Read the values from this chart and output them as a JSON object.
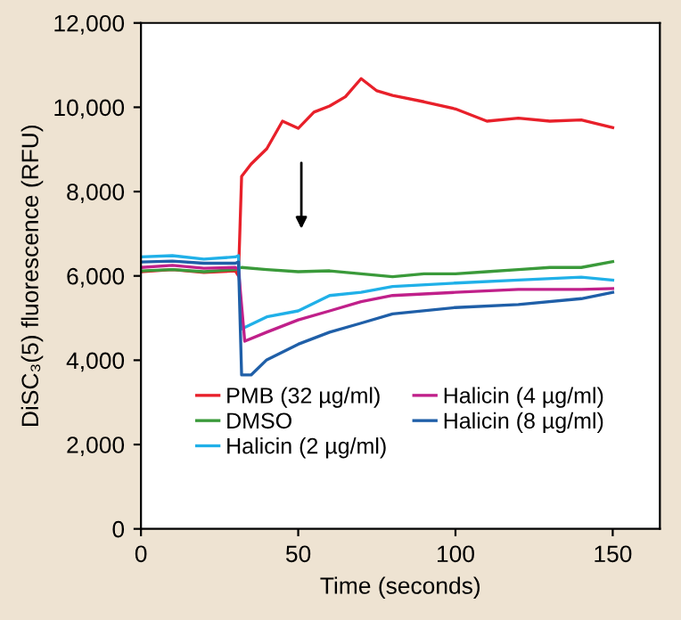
{
  "chart_data": {
    "type": "line",
    "xlabel": "Time (seconds)",
    "ylabel": "DiSC₃(5) fluorescence (RFU)",
    "xlim": [
      0,
      165
    ],
    "xticks": [
      0,
      50,
      100,
      150
    ],
    "ylim": [
      0,
      12000
    ],
    "yticks": [
      {
        "value": 0,
        "label": "0"
      },
      {
        "value": 2000,
        "label": "2,000"
      },
      {
        "value": 4000,
        "label": "4,000"
      },
      {
        "value": 6000,
        "label": "6,000"
      },
      {
        "value": 8000,
        "label": "8,000"
      },
      {
        "value": 10000,
        "label": "10,000"
      },
      {
        "value": 12000,
        "label": "12,000"
      }
    ],
    "grid": false,
    "legend": "bottom",
    "marker": "none",
    "line_style": "solid",
    "series": [
      {
        "name": "PMB (32 µg/ml)",
        "color": "#e8202a",
        "x": [
          0,
          10,
          20,
          30,
          31,
          32,
          35,
          40,
          45,
          50,
          55,
          60,
          65,
          70,
          75,
          80,
          90,
          100,
          110,
          120,
          130,
          140,
          150
        ],
        "values": [
          6100,
          6150,
          6080,
          6120,
          6000,
          8360,
          8650,
          9015,
          9670,
          9500,
          9885,
          10030,
          10250,
          10680,
          10390,
          10280,
          10130,
          9960,
          9670,
          9740,
          9670,
          9700,
          9520
        ]
      },
      {
        "name": "DMSO",
        "color": "#3a9a3a",
        "x": [
          0,
          10,
          20,
          30,
          32,
          40,
          50,
          60,
          70,
          80,
          90,
          100,
          110,
          120,
          130,
          140,
          150
        ],
        "values": [
          6120,
          6150,
          6100,
          6150,
          6200,
          6150,
          6100,
          6120,
          6050,
          5980,
          6050,
          6050,
          6100,
          6150,
          6200,
          6200,
          6340
        ]
      },
      {
        "name": "Halicin (2 µg/ml)",
        "color": "#20b0e8",
        "x": [
          0,
          10,
          20,
          30,
          31,
          32,
          40,
          50,
          60,
          70,
          80,
          100,
          120,
          140,
          150
        ],
        "values": [
          6450,
          6480,
          6400,
          6450,
          6480,
          4740,
          5030,
          5170,
          5535,
          5610,
          5750,
          5830,
          5900,
          5970,
          5900
        ]
      },
      {
        "name": "Halicin (4 µg/ml)",
        "color": "#c0208a",
        "x": [
          0,
          10,
          20,
          30,
          31,
          33,
          40,
          50,
          60,
          70,
          80,
          100,
          120,
          140,
          150
        ],
        "values": [
          6200,
          6250,
          6180,
          6200,
          6150,
          4450,
          4665,
          4955,
          5170,
          5390,
          5535,
          5610,
          5680,
          5680,
          5700
        ]
      },
      {
        "name": "Halicin (8 µg/ml)",
        "color": "#1f5fa8",
        "x": [
          0,
          10,
          20,
          30,
          31,
          32,
          35,
          40,
          50,
          60,
          70,
          80,
          100,
          120,
          140,
          150
        ],
        "values": [
          6330,
          6350,
          6300,
          6300,
          6330,
          3650,
          3650,
          4010,
          4380,
          4665,
          4880,
          5100,
          5250,
          5320,
          5460,
          5610
        ]
      }
    ]
  }
}
